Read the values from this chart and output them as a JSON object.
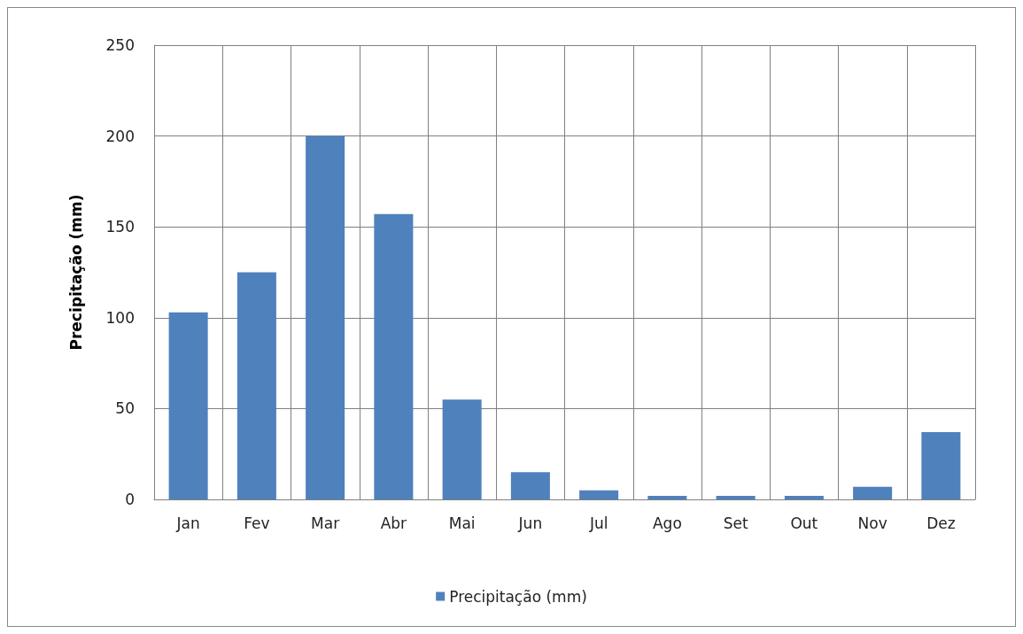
{
  "chart_data": {
    "type": "bar",
    "ylabel": "Precipitação (mm)",
    "categories": [
      "Jan",
      "Fev",
      "Mar",
      "Abr",
      "Mai",
      "Jun",
      "Jul",
      "Ago",
      "Set",
      "Out",
      "Nov",
      "Dez"
    ],
    "series": [
      {
        "name": "Precipitação (mm)",
        "color": "#4f81bd",
        "values": [
          103,
          125,
          200,
          157,
          55,
          15,
          5,
          2,
          2,
          2,
          7,
          37
        ]
      }
    ],
    "ylim": [
      0,
      250
    ],
    "yticks": [
      0,
      50,
      100,
      150,
      200,
      250
    ],
    "grid": true,
    "legend": "bottom"
  }
}
